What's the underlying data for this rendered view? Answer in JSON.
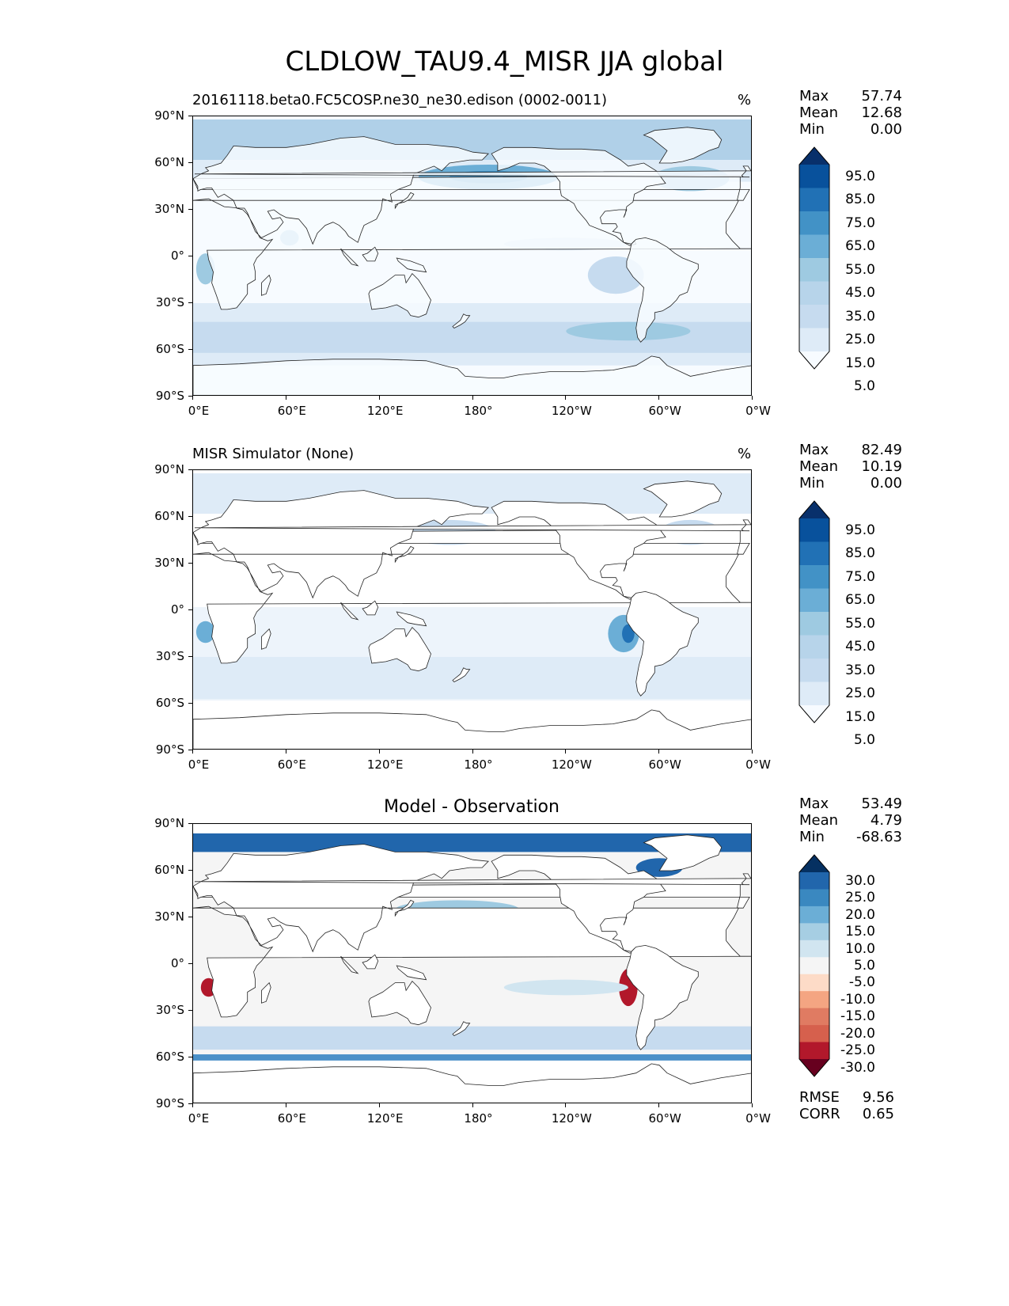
{
  "title": "CLDLOW_TAU9.4_MISR JJA global",
  "lat_ticks": [
    "90°N",
    "60°N",
    "30°N",
    "0°",
    "30°S",
    "60°S",
    "90°S"
  ],
  "lon_ticks": [
    "0°E",
    "60°E",
    "120°E",
    "180°",
    "120°W",
    "60°W",
    "0°W"
  ],
  "panels": [
    {
      "id": "model",
      "title_left": "20161118.beta0.FC5COSP.ne30_ne30.edison (0002-0011)",
      "title_center": "",
      "unit": "%",
      "stats": [
        {
          "label": "Max",
          "value": "57.74"
        },
        {
          "label": "Mean",
          "value": "12.68"
        },
        {
          "label": "Min",
          "value": "0.00"
        }
      ],
      "colorbar_labels": [
        "95.0",
        "85.0",
        "75.0",
        "65.0",
        "55.0",
        "45.0",
        "35.0",
        "25.0",
        "15.0",
        "5.0"
      ],
      "colorbar_colors": [
        "#08306b",
        "#08519c",
        "#2171b5",
        "#4292c6",
        "#6baed6",
        "#9ecae1",
        "#b7d4ea",
        "#c6dbef",
        "#deebf7",
        "#f7fbff"
      ],
      "extra_stats": []
    },
    {
      "id": "obs",
      "title_left": "MISR Simulator (None)",
      "title_center": "",
      "unit": "%",
      "stats": [
        {
          "label": "Max",
          "value": "82.49"
        },
        {
          "label": "Mean",
          "value": "10.19"
        },
        {
          "label": "Min",
          "value": "0.00"
        }
      ],
      "colorbar_labels": [
        "95.0",
        "85.0",
        "75.0",
        "65.0",
        "55.0",
        "45.0",
        "35.0",
        "25.0",
        "15.0",
        "5.0"
      ],
      "colorbar_colors": [
        "#08306b",
        "#08519c",
        "#2171b5",
        "#4292c6",
        "#6baed6",
        "#9ecae1",
        "#b7d4ea",
        "#c6dbef",
        "#deebf7",
        "#f7fbff"
      ],
      "extra_stats": []
    },
    {
      "id": "diff",
      "title_left": "",
      "title_center": "Model - Observation",
      "unit": "",
      "stats": [
        {
          "label": "Max",
          "value": "53.49"
        },
        {
          "label": "Mean",
          "value": "4.79"
        },
        {
          "label": "Min",
          "value": "-68.63"
        }
      ],
      "colorbar_labels": [
        "30.0",
        "25.0",
        "20.0",
        "15.0",
        "10.0",
        "5.0",
        "-5.0",
        "-10.0",
        "-15.0",
        "-20.0",
        "-25.0",
        "-30.0"
      ],
      "colorbar_colors": [
        "#053061",
        "#2166ac",
        "#3a88c0",
        "#6baed6",
        "#a6cee3",
        "#d1e5f0",
        "#f5f5f5",
        "#fddbc7",
        "#f4a582",
        "#e07b62",
        "#d6604d",
        "#b2182b",
        "#67001f"
      ],
      "extra_stats": [
        {
          "label": "RMSE",
          "value": "9.56"
        },
        {
          "label": "CORR",
          "value": "0.65"
        }
      ]
    }
  ]
}
